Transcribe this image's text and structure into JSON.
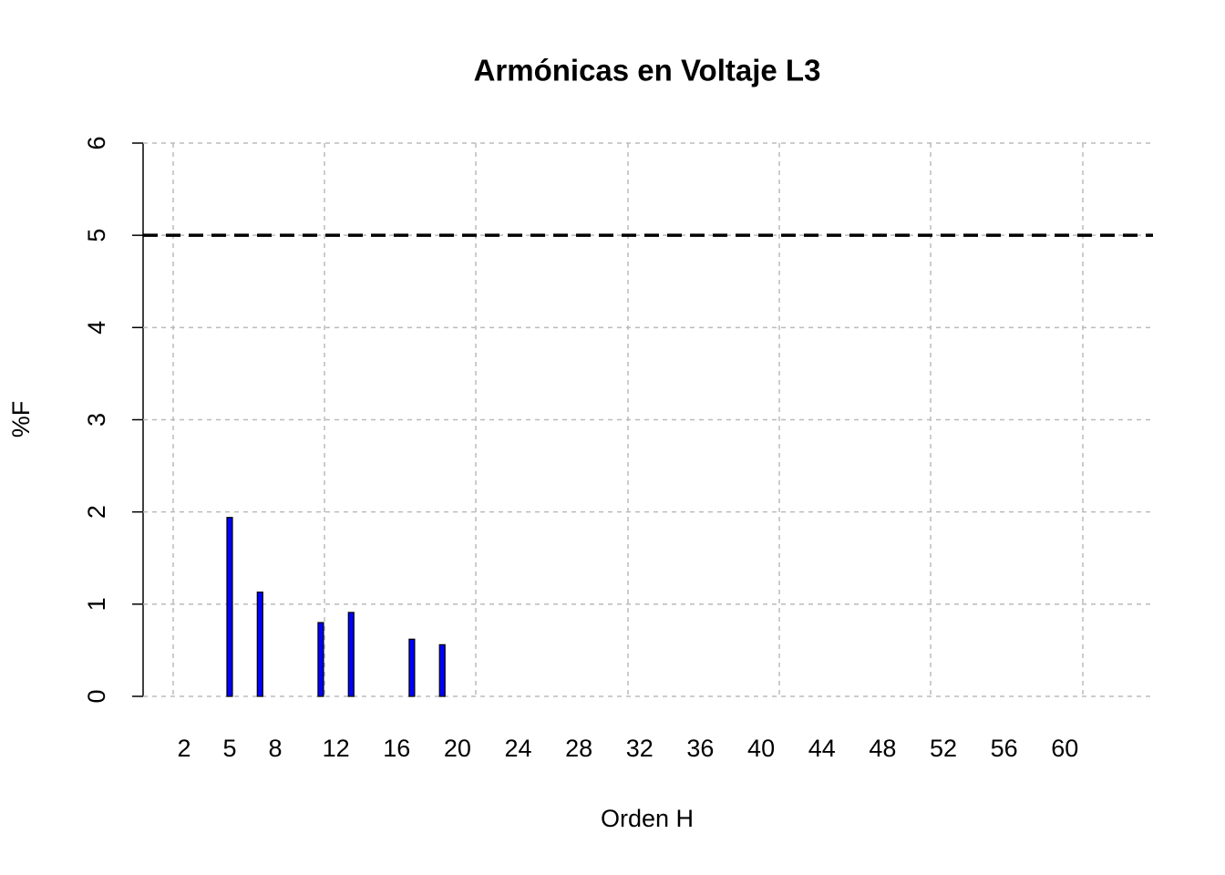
{
  "chart_data": {
    "type": "bar",
    "title": "Armónicas en Voltaje L3",
    "xlabel": "Orden H",
    "ylabel": "%F",
    "categories": [
      "2",
      null,
      null,
      "5",
      null,
      null,
      "8",
      null,
      null,
      null,
      "12",
      null,
      null,
      null,
      "16",
      null,
      null,
      null,
      "20",
      null,
      null,
      null,
      "24",
      null,
      null,
      null,
      "28",
      null,
      null,
      null,
      "32",
      null,
      null,
      null,
      "36",
      null,
      null,
      null,
      "40",
      null,
      null,
      null,
      "44",
      null,
      null,
      null,
      "48",
      null,
      null,
      null,
      "52",
      null,
      null,
      null,
      "56",
      null,
      null,
      null,
      "60",
      null,
      null,
      null
    ],
    "values": [
      0,
      0,
      0,
      1.94,
      0,
      1.13,
      0,
      0,
      0,
      0.8,
      0,
      0.91,
      0,
      0,
      0,
      0.62,
      0,
      0.56,
      0,
      0,
      0,
      0,
      0,
      0,
      0,
      0,
      0,
      0,
      0,
      0,
      0,
      0,
      0,
      0,
      0,
      0,
      0,
      0,
      0,
      0,
      0,
      0,
      0,
      0,
      0,
      0,
      0,
      0,
      0,
      0,
      0,
      0,
      0,
      0,
      0,
      0,
      0,
      0,
      0,
      0,
      0,
      0
    ],
    "color": "#0000ff",
    "ylim": [
      0,
      6
    ],
    "yticks": [
      0,
      1,
      2,
      3,
      4,
      5,
      6
    ],
    "grid": true,
    "reference_line": 5
  }
}
